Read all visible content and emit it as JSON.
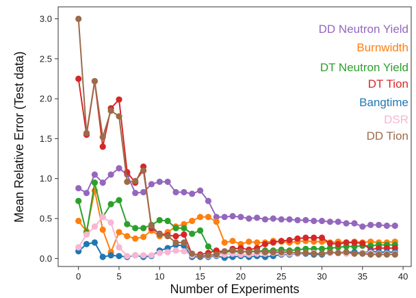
{
  "chart_data": {
    "type": "line",
    "xlabel": "Number of Experiments",
    "ylabel": "Mean Relative Error (Test data)",
    "xlim": [
      -2.5,
      41
    ],
    "ylim": [
      -0.1,
      3.15
    ],
    "xticks": [
      0,
      5,
      10,
      15,
      20,
      25,
      30,
      35,
      40
    ],
    "yticks": [
      0.0,
      0.5,
      1.0,
      1.5,
      2.0,
      2.5,
      3.0
    ],
    "xtick_labels": [
      "0",
      "5",
      "10",
      "15",
      "20",
      "25",
      "30",
      "35",
      "40"
    ],
    "ytick_labels": [
      "0.0",
      "0.5",
      "1.0",
      "1.5",
      "2.0",
      "2.5",
      "3.0"
    ],
    "grid": false,
    "legend_position": "top-right",
    "x": [
      0,
      1,
      2,
      3,
      4,
      5,
      6,
      7,
      8,
      9,
      10,
      11,
      12,
      13,
      14,
      15,
      16,
      17,
      18,
      19,
      20,
      21,
      22,
      23,
      24,
      25,
      26,
      27,
      28,
      29,
      30,
      31,
      32,
      33,
      34,
      35,
      36,
      37,
      38,
      39
    ],
    "series": [
      {
        "name": "DD Neutron Yield",
        "color": "#9467bd",
        "values": [
          0.88,
          0.82,
          1.05,
          0.95,
          1.05,
          1.13,
          1.05,
          0.82,
          0.83,
          0.93,
          0.96,
          0.96,
          0.83,
          0.83,
          0.81,
          0.85,
          0.72,
          0.52,
          0.52,
          0.53,
          0.52,
          0.5,
          0.51,
          0.49,
          0.5,
          0.49,
          0.49,
          0.48,
          0.48,
          0.47,
          0.47,
          0.46,
          0.46,
          0.44,
          0.44,
          0.4,
          0.42,
          0.42,
          0.41,
          0.41
        ]
      },
      {
        "name": "Burnwidth",
        "color": "#ff7f0e",
        "values": [
          0.47,
          0.34,
          0.85,
          0.36,
          0.08,
          0.33,
          0.28,
          0.25,
          0.27,
          0.35,
          0.28,
          0.33,
          0.4,
          0.43,
          0.47,
          0.52,
          0.52,
          0.46,
          0.2,
          0.22,
          0.18,
          0.21,
          0.2,
          0.2,
          0.22,
          0.21,
          0.2,
          0.21,
          0.22,
          0.21,
          0.21,
          0.2,
          0.21,
          0.2,
          0.21,
          0.2,
          0.21,
          0.2,
          0.2,
          0.21
        ]
      },
      {
        "name": "DT Neutron Yield",
        "color": "#2ca02c",
        "values": [
          0.72,
          0.32,
          0.95,
          0.52,
          0.68,
          0.73,
          0.43,
          0.38,
          0.38,
          0.42,
          0.48,
          0.47,
          0.38,
          0.38,
          0.31,
          0.35,
          0.15,
          0.06,
          0.08,
          0.09,
          0.08,
          0.09,
          0.09,
          0.1,
          0.1,
          0.11,
          0.1,
          0.11,
          0.12,
          0.12,
          0.12,
          0.13,
          0.14,
          0.15,
          0.15,
          0.16,
          0.16,
          0.17,
          0.17,
          0.17
        ]
      },
      {
        "name": "DT Tion",
        "color": "#d62728",
        "values": [
          2.25,
          1.55,
          2.22,
          1.4,
          1.88,
          1.99,
          1.08,
          0.95,
          1.15,
          0.38,
          0.31,
          0.29,
          0.28,
          0.3,
          0.05,
          0.05,
          0.07,
          0.1,
          0.08,
          0.12,
          0.13,
          0.11,
          0.13,
          0.18,
          0.2,
          0.22,
          0.23,
          0.25,
          0.26,
          0.26,
          0.26,
          0.19,
          0.18,
          0.2,
          0.2,
          0.19,
          0.11,
          0.13,
          0.13,
          0.13
        ]
      },
      {
        "name": "Bangtime",
        "color": "#1f77b4",
        "values": [
          0.09,
          0.18,
          0.2,
          0.02,
          0.04,
          0.03,
          0.02,
          0.04,
          0.02,
          0.03,
          0.1,
          0.13,
          0.17,
          0.16,
          0.02,
          0.02,
          0.02,
          0.03,
          0.01,
          0.02,
          0.03,
          0.02,
          0.03,
          0.02,
          0.03,
          0.05,
          0.05,
          0.06,
          0.06,
          0.05,
          0.05,
          0.07,
          0.07,
          0.08,
          0.08,
          0.07,
          0.09,
          0.08,
          0.08,
          0.08
        ]
      },
      {
        "name": "DSR",
        "color": "#f7b6d2",
        "values": [
          0.14,
          0.3,
          0.4,
          0.52,
          0.45,
          0.14,
          0.03,
          0.04,
          0.04,
          0.04,
          0.07,
          0.08,
          0.1,
          0.09,
          0.04,
          0.03,
          0.03,
          0.04,
          0.05,
          0.06,
          0.05,
          0.05,
          0.06,
          0.06,
          0.07,
          0.06,
          0.06,
          0.06,
          0.07,
          0.07,
          0.06,
          0.07,
          0.07,
          0.06,
          0.06,
          0.07,
          0.07,
          0.06,
          0.06,
          0.06
        ]
      },
      {
        "name": "DD Tion",
        "color": "#9c6b4a",
        "values": [
          3.0,
          1.57,
          2.22,
          1.52,
          1.85,
          1.78,
          0.96,
          0.97,
          1.1,
          0.41,
          0.3,
          0.28,
          0.2,
          0.2,
          0.06,
          0.03,
          0.04,
          0.05,
          0.09,
          0.1,
          0.09,
          0.08,
          0.09,
          0.08,
          0.08,
          0.08,
          0.08,
          0.07,
          0.07,
          0.06,
          0.06,
          0.08,
          0.07,
          0.08,
          0.06,
          0.06,
          0.05,
          0.05,
          0.05,
          0.05
        ]
      }
    ]
  }
}
